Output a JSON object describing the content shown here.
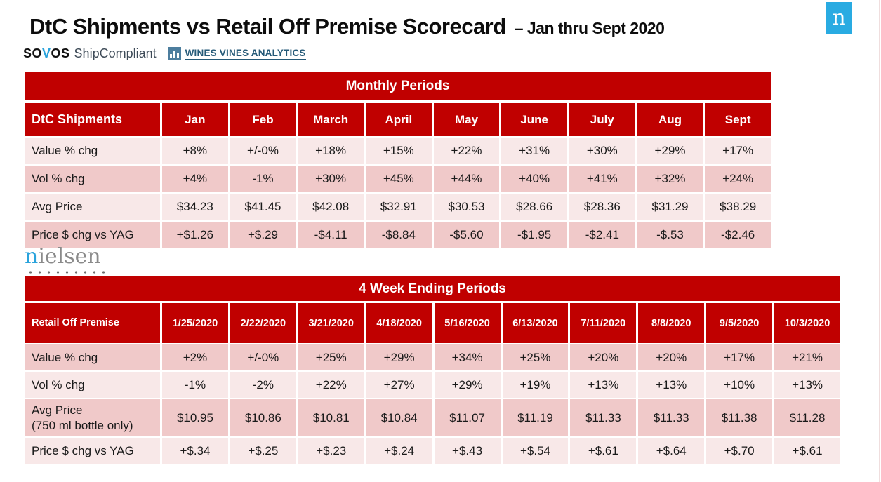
{
  "header": {
    "title": "DtC Shipments vs Retail Off Premise Scorecard",
    "subtitle": "– Jan thru Sept 2020",
    "logos": {
      "sovos": {
        "pre": "SO",
        "v": "V",
        "post": "OS"
      },
      "shipcompliant": "ShipCompliant",
      "wva_text": "WINES VINES ANALYTICS",
      "wva_icon": "bar-chart-icon",
      "nielsen_badge_letter": "n"
    }
  },
  "colors": {
    "band_red": "#c00000",
    "row_light": "#f8e8e8",
    "row_dark": "#f0c9c9",
    "nielsen_blue": "#29abe2",
    "wva_blue": "#265a78"
  },
  "monthly": {
    "band_title": "Monthly Periods",
    "corner_label": "DtC Shipments",
    "columns": [
      "Jan",
      "Feb",
      "March",
      "April",
      "May",
      "June",
      "July",
      "Aug",
      "Sept"
    ],
    "rows": [
      {
        "label": "Value % chg",
        "values": [
          "+8%",
          "+/-0%",
          "+18%",
          "+15%",
          "+22%",
          "+31%",
          "+30%",
          "+29%",
          "+17%"
        ]
      },
      {
        "label": "Vol % chg",
        "values": [
          "+4%",
          "-1%",
          "+30%",
          "+45%",
          "+44%",
          "+40%",
          "+41%",
          "+32%",
          "+24%"
        ]
      },
      {
        "label": "Avg Price",
        "values": [
          "$34.23",
          "$41.45",
          "$42.08",
          "$32.91",
          "$30.53",
          "$28.66",
          "$28.36",
          "$31.29",
          "$38.29"
        ]
      },
      {
        "label": "Price $ chg vs YAG",
        "values": [
          "+$1.26",
          "+$.29",
          "-$4.11",
          "-$8.84",
          "-$5.60",
          "-$1.95",
          "-$2.41",
          "-$.53",
          "-$2.46"
        ]
      }
    ]
  },
  "nielsen_mark": {
    "first": "n",
    "rest": "ielsen"
  },
  "four_week": {
    "band_title": "4 Week Ending Periods",
    "corner_label": "Retail Off Premise",
    "columns": [
      "1/25/2020",
      "2/22/2020",
      "3/21/2020",
      "4/18/2020",
      "5/16/2020",
      "6/13/2020",
      "7/11/2020",
      "8/8/2020",
      "9/5/2020",
      "10/3/2020"
    ],
    "rows": [
      {
        "label": "Value % chg",
        "values": [
          "+2%",
          "+/-0%",
          "+25%",
          "+29%",
          "+34%",
          "+25%",
          "+20%",
          "+20%",
          "+17%",
          "+21%"
        ]
      },
      {
        "label": "Vol % chg",
        "values": [
          "-1%",
          "-2%",
          "+22%",
          "+27%",
          "+29%",
          "+19%",
          "+13%",
          "+13%",
          "+10%",
          "+13%"
        ]
      },
      {
        "label": "Avg Price",
        "sublabel": "(750 ml bottle only)",
        "values": [
          "$10.95",
          "$10.86",
          "$10.81",
          "$10.84",
          "$11.07",
          "$11.19",
          "$11.33",
          "$11.33",
          "$11.38",
          "$11.28"
        ]
      },
      {
        "label": "Price $ chg vs YAG",
        "values": [
          "+$.34",
          "+$.25",
          "+$.23",
          "+$.24",
          "+$.43",
          "+$.54",
          "+$.61",
          "+$.64",
          "+$.70",
          "+$.61"
        ]
      }
    ]
  }
}
